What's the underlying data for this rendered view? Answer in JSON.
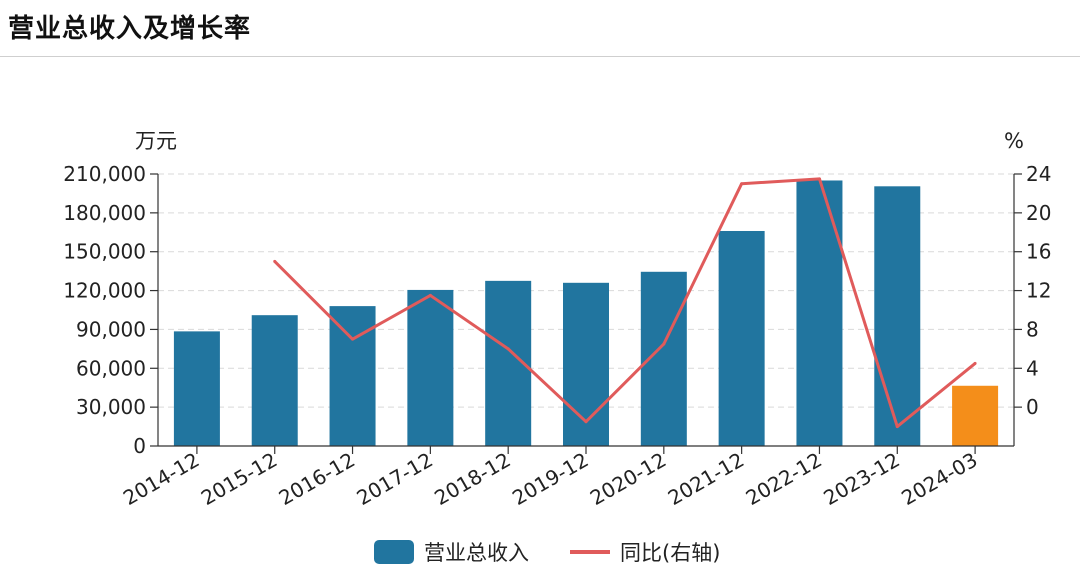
{
  "title": "营业总收入及增长率",
  "chart_data": {
    "type": "bar",
    "categories": [
      "2014-12",
      "2015-12",
      "2016-12",
      "2017-12",
      "2018-12",
      "2019-12",
      "2020-12",
      "2021-12",
      "2022-12",
      "2023-12",
      "2024-03"
    ],
    "series": [
      {
        "name": "营业总收入",
        "type": "bar",
        "axis": "left",
        "values": [
          88500,
          101000,
          108000,
          120500,
          127500,
          126000,
          134500,
          166000,
          205000,
          200500,
          46500
        ],
        "colors": [
          "#21759f",
          "#21759f",
          "#21759f",
          "#21759f",
          "#21759f",
          "#21759f",
          "#21759f",
          "#21759f",
          "#21759f",
          "#21759f",
          "#f48e1a"
        ]
      },
      {
        "name": "同比(右轴)",
        "type": "line",
        "axis": "right",
        "color": "#e05b5b",
        "values": [
          null,
          15,
          7,
          11.5,
          6,
          -1.5,
          6.5,
          23,
          23.5,
          -2,
          4.5
        ]
      }
    ],
    "left_axis": {
      "unit": "万元",
      "ylim": [
        0,
        210000
      ],
      "ticks": [
        "0",
        "30,000",
        "60,000",
        "90,000",
        "120,000",
        "150,000",
        "180,000",
        "210,000"
      ],
      "tick_values": [
        0,
        30000,
        60000,
        90000,
        120000,
        150000,
        180000,
        210000
      ]
    },
    "right_axis": {
      "unit": "%",
      "ylim": [
        -4,
        24
      ],
      "ticks": [
        "0",
        "4",
        "8",
        "12",
        "16",
        "20",
        "24"
      ],
      "tick_values": [
        0,
        4,
        8,
        12,
        16,
        20,
        24
      ]
    },
    "legend": [
      {
        "label": "营业总收入",
        "color": "#21759f",
        "kind": "bar"
      },
      {
        "label": "同比(右轴)",
        "color": "#e05b5b",
        "kind": "line"
      }
    ],
    "legend_position": "bottom",
    "grid": true
  }
}
